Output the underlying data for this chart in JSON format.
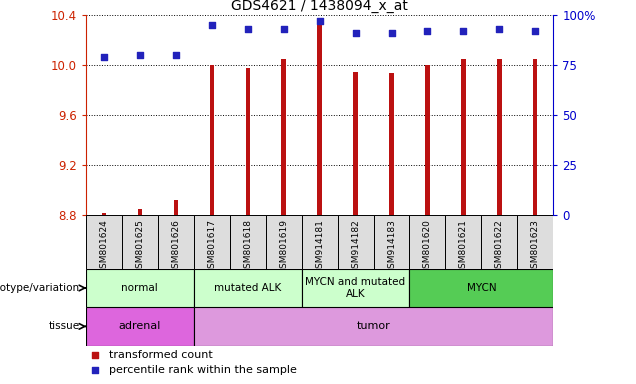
{
  "title": "GDS4621 / 1438094_x_at",
  "samples": [
    "GSM801624",
    "GSM801625",
    "GSM801626",
    "GSM801617",
    "GSM801618",
    "GSM801619",
    "GSM914181",
    "GSM914182",
    "GSM914183",
    "GSM801620",
    "GSM801621",
    "GSM801622",
    "GSM801623"
  ],
  "transformed_count": [
    8.82,
    8.85,
    8.92,
    10.0,
    9.98,
    10.05,
    10.35,
    9.95,
    9.94,
    10.0,
    10.05,
    10.05,
    10.05
  ],
  "percentile_rank": [
    79,
    80,
    80,
    95,
    93,
    93,
    97,
    91,
    91,
    92,
    92,
    93,
    92
  ],
  "ylim_left": [
    8.8,
    10.4
  ],
  "ylim_right": [
    0,
    100
  ],
  "yticks_left": [
    8.8,
    9.2,
    9.6,
    10.0,
    10.4
  ],
  "yticks_right": [
    0,
    25,
    50,
    75,
    100
  ],
  "ytick_labels_right": [
    "0",
    "25",
    "50",
    "75",
    "100%"
  ],
  "bar_color": "#bb1111",
  "dot_color": "#2222bb",
  "bar_width": 0.12,
  "groups": [
    {
      "label": "normal",
      "start": 0,
      "end": 3,
      "color": "#ccffcc"
    },
    {
      "label": "mutated ALK",
      "start": 3,
      "end": 6,
      "color": "#ccffcc"
    },
    {
      "label": "MYCN and mutated\nALK",
      "start": 6,
      "end": 9,
      "color": "#ccffcc"
    },
    {
      "label": "MYCN",
      "start": 9,
      "end": 13,
      "color": "#55cc55"
    }
  ],
  "tissues": [
    {
      "label": "adrenal",
      "start": 0,
      "end": 3,
      "color": "#dd66dd"
    },
    {
      "label": "tumor",
      "start": 3,
      "end": 13,
      "color": "#dd99dd"
    }
  ],
  "legend_items": [
    {
      "color": "#bb1111",
      "label": "transformed count"
    },
    {
      "color": "#2222bb",
      "label": "percentile rank within the sample"
    }
  ],
  "left_axis_color": "#cc2200",
  "right_axis_color": "#0000cc",
  "grid_color": "black",
  "bg_color": "#dddddd"
}
